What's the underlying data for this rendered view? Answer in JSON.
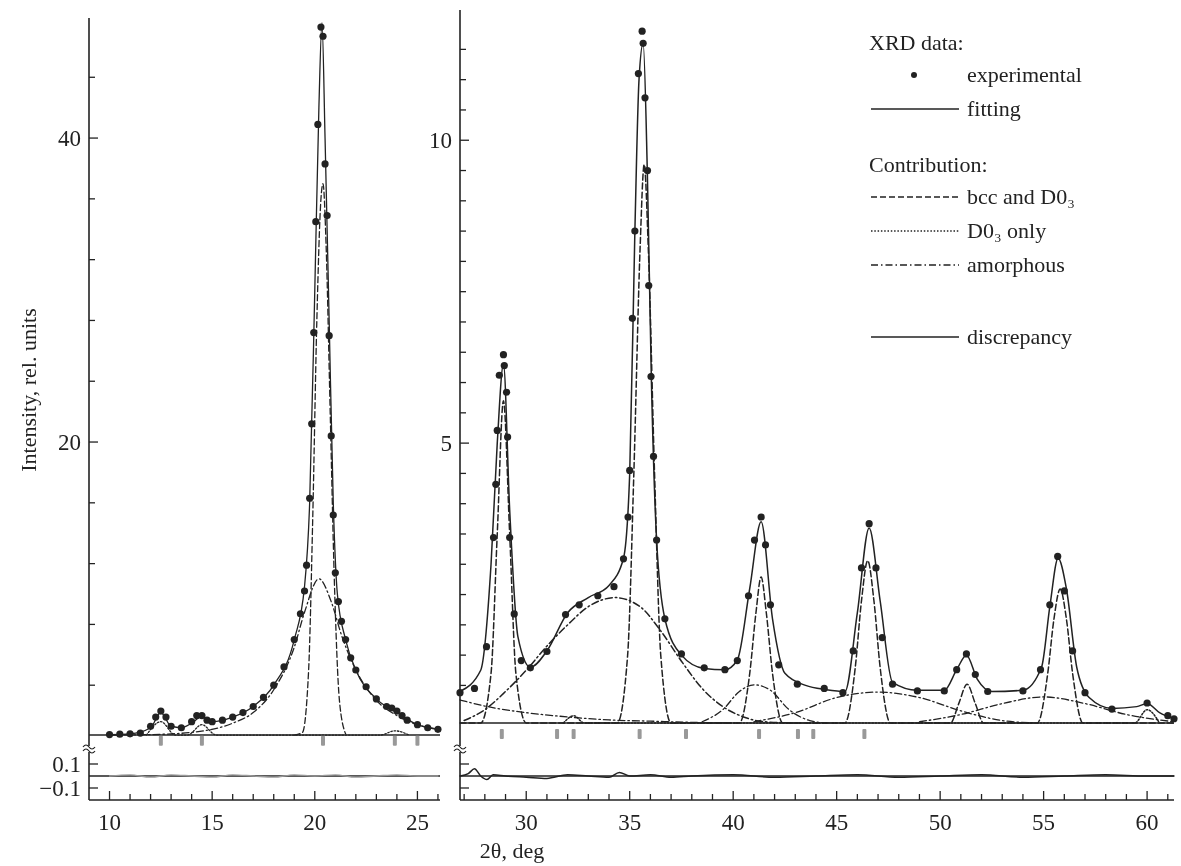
{
  "chart_data": [
    {
      "type": "line",
      "ylabel": "Intensity, rel. units",
      "xlim": [
        9.0,
        26.1
      ],
      "ylim": [
        0,
        47.9
      ],
      "tick_labels": "y",
      "yticks": [
        {
          "value": 4,
          "label": null
        },
        {
          "value": 8,
          "label": null
        },
        {
          "value": 12,
          "label": null
        },
        {
          "value": 16,
          "label": null
        },
        20,
        {
          "value": 24,
          "label": null
        },
        {
          "value": 28,
          "label": null
        },
        {
          "value": 32,
          "label": null
        },
        {
          "value": 36,
          "label": null
        },
        40,
        {
          "value": 44,
          "label": null
        }
      ],
      "ref_lines": [
        {
          "axis": "y",
          "value": 0.72,
          "color": "#222222"
        }
      ],
      "series": [
        {
          "type": "line",
          "color": "#222222",
          "line_style": "dashdot",
          "x": [
            10,
            12,
            14,
            16,
            17,
            18,
            19,
            19.5,
            20.2,
            20.8,
            21.3,
            22,
            23,
            24,
            25,
            26
          ],
          "values": [
            0.72,
            0.75,
            0.9,
            1.5,
            2.2,
            3.7,
            6.5,
            8.8,
            11.0,
            9.5,
            7.3,
            5.0,
            3.0,
            2.0,
            1.4,
            1.1
          ]
        },
        {
          "type": "line",
          "color": "#222222",
          "line_style": "dotted",
          "x": [
            11.8,
            12.5,
            13.2,
            13.8,
            14.5,
            15.2,
            23.2,
            23.9,
            24.6
          ],
          "values": [
            0.72,
            1.6,
            0.72,
            0.72,
            1.4,
            0.72,
            0.72,
            1.0,
            0.72
          ]
        },
        {
          "type": "line",
          "color": "#222222",
          "line_style": "dashed",
          "x": [
            19.0,
            19.4,
            19.7,
            19.9,
            20.1,
            20.3,
            20.4,
            20.55,
            20.75,
            20.95,
            21.2,
            21.5
          ],
          "values": [
            0.72,
            0.9,
            5,
            15,
            28,
            36,
            37,
            33,
            22,
            11,
            3,
            0.8
          ]
        },
        {
          "type": "line",
          "color": "#222222",
          "line_style": "solid",
          "x": [
            10,
            11,
            12,
            12.5,
            13,
            13.5,
            14,
            14.5,
            15,
            16,
            17,
            18,
            19,
            19.5,
            19.75,
            20,
            20.2,
            20.35,
            20.5,
            20.7,
            20.9,
            21.1,
            21.5,
            22,
            23,
            24,
            25,
            26
          ],
          "values": [
            0.75,
            0.8,
            1.2,
            2.2,
            1.3,
            1.2,
            1.5,
            1.95,
            1.6,
            1.9,
            2.6,
            4.0,
            7.0,
            10.5,
            16,
            30,
            42,
            47.6,
            40,
            28,
            16,
            10,
            7,
            5,
            3.1,
            2.2,
            1.4,
            1.1
          ]
        },
        {
          "type": "scatter",
          "color": "#222222",
          "marker": "circle",
          "x": [
            10.0,
            10.5,
            11.0,
            11.5,
            12.0,
            12.25,
            12.5,
            12.75,
            13.0,
            13.5,
            14.0,
            14.25,
            14.5,
            14.75,
            15.0,
            15.5,
            16.0,
            16.5,
            17.0,
            17.5,
            18.0,
            18.5,
            19.0,
            19.3,
            19.5,
            19.6,
            19.75,
            19.85,
            19.95,
            20.05,
            20.15,
            20.3,
            20.4,
            20.5,
            20.6,
            20.7,
            20.8,
            20.9,
            21.0,
            21.15,
            21.3,
            21.5,
            21.75,
            22.0,
            22.5,
            23.0,
            23.5,
            23.75,
            24.0,
            24.25,
            24.5,
            25.0,
            25.5,
            26.0
          ],
          "values": [
            0.75,
            0.78,
            0.8,
            0.85,
            1.3,
            1.9,
            2.3,
            1.9,
            1.3,
            1.2,
            1.6,
            2.0,
            2.0,
            1.7,
            1.6,
            1.7,
            1.9,
            2.2,
            2.6,
            3.2,
            4.0,
            5.2,
            7.0,
            8.7,
            10.2,
            11.9,
            16.3,
            21.2,
            27.2,
            34.5,
            40.9,
            47.3,
            46.7,
            38.3,
            34.9,
            27.0,
            20.4,
            15.2,
            11.4,
            9.5,
            8.2,
            7.0,
            5.8,
            5.0,
            3.9,
            3.1,
            2.6,
            2.5,
            2.3,
            2.0,
            1.7,
            1.4,
            1.2,
            1.1
          ]
        },
        {
          "type": "scatter",
          "color": "#999999",
          "marker": "square",
          "x": [
            12.5,
            14.5,
            20.4,
            23.9,
            25.0
          ],
          "values": [
            0.35,
            0.35,
            0.35,
            0.35,
            0.35
          ]
        }
      ]
    },
    {
      "type": "line",
      "xlim": [
        26.8,
        61.3
      ],
      "ylim": [
        0,
        12.15
      ],
      "tick_labels": "y",
      "legend": "top right",
      "annotations": [
        "XRD data:",
        "Contribution:"
      ],
      "yticks": [
        {
          "value": 1,
          "label": null
        },
        {
          "value": 1.5,
          "label": null
        },
        {
          "value": 2,
          "label": null
        },
        {
          "value": 2.5,
          "label": null
        },
        {
          "value": 3,
          "label": null
        },
        {
          "value": 3.5,
          "label": null
        },
        {
          "value": 4,
          "label": null
        },
        {
          "value": 4.5,
          "label": null
        },
        5,
        {
          "value": 5.5,
          "label": null
        },
        {
          "value": 6,
          "label": null
        },
        {
          "value": 6.5,
          "label": null
        },
        {
          "value": 7,
          "label": null
        },
        {
          "value": 7.5,
          "label": null
        },
        {
          "value": 8,
          "label": null
        },
        {
          "value": 8.5,
          "label": null
        },
        {
          "value": 9,
          "label": null
        },
        {
          "value": 9.5,
          "label": null
        },
        10,
        {
          "value": 10.5,
          "label": null
        },
        {
          "value": 11,
          "label": null
        },
        {
          "value": 11.5,
          "label": null
        }
      ],
      "ref_lines": [
        {
          "axis": "y",
          "value": 0.38,
          "color": "#222222"
        }
      ],
      "series": [
        {
          "name": "experimental",
          "type": "scatter",
          "color": "#222222",
          "marker": "circle",
          "x": [
            26.8,
            27.5,
            28.08,
            28.42,
            28.53,
            28.6,
            28.7,
            28.9,
            28.94,
            29.05,
            29.1,
            29.2,
            29.42,
            29.76,
            30.2,
            31.0,
            31.9,
            32.56,
            33.46,
            34.24,
            34.7,
            34.92,
            35.0,
            35.13,
            35.25,
            35.42,
            35.6,
            35.65,
            35.74,
            35.86,
            35.92,
            36.03,
            36.15,
            36.3,
            36.7,
            37.5,
            38.6,
            39.6,
            40.2,
            40.74,
            41.03,
            41.35,
            41.56,
            41.8,
            42.2,
            43.1,
            44.4,
            45.3,
            45.8,
            46.2,
            46.57,
            46.9,
            47.2,
            47.7,
            48.9,
            50.2,
            50.8,
            51.27,
            51.7,
            52.3,
            54.0,
            54.85,
            55.3,
            55.68,
            56.0,
            56.4,
            57.0,
            58.3,
            60.0,
            61.0,
            61.3
          ],
          "values": [
            0.88,
            0.95,
            1.64,
            3.44,
            4.32,
            5.21,
            6.12,
            6.46,
            6.28,
            5.84,
            5.1,
            3.44,
            2.18,
            1.41,
            1.29,
            1.56,
            2.17,
            2.33,
            2.48,
            2.63,
            3.09,
            3.78,
            4.55,
            7.06,
            8.5,
            11.1,
            11.8,
            11.6,
            10.7,
            9.5,
            7.6,
            6.1,
            4.78,
            3.4,
            2.1,
            1.52,
            1.29,
            1.26,
            1.41,
            2.48,
            3.4,
            3.78,
            3.32,
            2.33,
            1.34,
            1.02,
            0.95,
            0.88,
            1.57,
            2.94,
            3.67,
            2.94,
            1.79,
            1.02,
            0.91,
            0.91,
            1.26,
            1.52,
            1.18,
            0.9,
            0.91,
            1.26,
            2.33,
            3.13,
            2.56,
            1.57,
            0.88,
            0.61,
            0.71,
            0.5,
            0.45
          ]
        },
        {
          "name": "fitting",
          "type": "line",
          "color": "#222222",
          "line_style": "solid",
          "x": [
            26.8,
            27.8,
            28.3,
            28.6,
            28.9,
            29.2,
            29.6,
            30.2,
            31,
            32,
            33,
            34,
            34.7,
            35.0,
            35.25,
            35.45,
            35.65,
            35.85,
            36.05,
            36.3,
            36.7,
            37.5,
            38.6,
            39.6,
            40.2,
            40.8,
            41.35,
            41.9,
            42.5,
            43.5,
            44.5,
            45.4,
            46.0,
            46.57,
            47.1,
            47.7,
            48.9,
            50.2,
            50.8,
            51.27,
            51.8,
            52.5,
            54.0,
            54.9,
            55.3,
            55.7,
            56.1,
            56.6,
            57.2,
            58.3,
            59.5,
            60.0,
            60.6,
            61.3
          ],
          "values": [
            0.9,
            1.25,
            3.0,
            5.0,
            6.3,
            3.9,
            1.8,
            1.3,
            1.57,
            2.2,
            2.45,
            2.65,
            3.1,
            4.5,
            8.5,
            11.0,
            11.6,
            9.5,
            6.0,
            3.4,
            2.1,
            1.5,
            1.28,
            1.26,
            1.42,
            2.6,
            3.7,
            2.1,
            1.2,
            1.0,
            0.93,
            0.9,
            2.2,
            3.6,
            2.4,
            1.05,
            0.92,
            0.92,
            1.26,
            1.5,
            1.1,
            0.9,
            0.92,
            1.3,
            2.3,
            3.1,
            2.6,
            1.3,
            0.8,
            0.62,
            0.65,
            0.7,
            0.55,
            0.45
          ]
        },
        {
          "name": "bcc and D0₃",
          "type": "line",
          "color": "#222222",
          "line_style": "dashed",
          "x": [
            26.8,
            27.8,
            28.3,
            28.6,
            28.9,
            29.2,
            29.5,
            30.0,
            34.4,
            34.9,
            35.2,
            35.5,
            35.7,
            35.9,
            36.2,
            36.5,
            37.0,
            40.3,
            40.8,
            41.1,
            41.35,
            41.6,
            41.9,
            42.4,
            45.4,
            45.9,
            46.2,
            46.5,
            46.8,
            47.1,
            47.6,
            50.5,
            50.9,
            51.3,
            51.7,
            52.1,
            54.7,
            55.2,
            55.5,
            55.8,
            56.1,
            56.4,
            56.9,
            61.3
          ],
          "values": [
            0.38,
            0.38,
            1.2,
            3.5,
            5.7,
            3.5,
            1.2,
            0.38,
            0.38,
            1.5,
            4.5,
            8.2,
            9.6,
            8.2,
            4.5,
            1.5,
            0.38,
            0.38,
            1.2,
            2.2,
            2.79,
            2.2,
            1.2,
            0.38,
            0.38,
            1.3,
            2.4,
            3.06,
            2.4,
            1.3,
            0.38,
            0.38,
            0.7,
            1.02,
            0.7,
            0.38,
            0.38,
            1.2,
            2.1,
            2.59,
            2.1,
            1.2,
            0.38,
            0.38
          ]
        },
        {
          "name": "D0₃ only",
          "type": "line",
          "color": "#222222",
          "line_style": "dotted",
          "x": [
            31.8,
            32.3,
            32.8,
            59.4,
            60.0,
            60.6
          ],
          "values": [
            0.38,
            0.5,
            0.38,
            0.38,
            0.6,
            0.38
          ]
        },
        {
          "name": "amorphous",
          "type": "line",
          "color": "#222222",
          "line_style": "dashdot",
          "x": [
            27,
            28,
            29,
            30,
            31,
            32,
            33,
            34.3,
            35.5,
            36.5,
            37.5,
            38.5,
            39.5,
            40.5,
            41.5,
            43
          ],
          "values": [
            0.42,
            0.6,
            0.9,
            1.25,
            1.65,
            2.0,
            2.3,
            2.45,
            2.3,
            1.9,
            1.4,
            0.95,
            0.65,
            0.48,
            0.4,
            0.38
          ]
        },
        {
          "type": "line",
          "color": "#222222",
          "line_style": "dashdot",
          "x": [
            26.8,
            28,
            30,
            32,
            34,
            36,
            38,
            40
          ],
          "values": [
            0.76,
            0.66,
            0.55,
            0.48,
            0.43,
            0.41,
            0.39,
            0.38
          ]
        },
        {
          "type": "line",
          "color": "#222222",
          "line_style": "dashdot",
          "x": [
            38.5,
            39.5,
            40.3,
            41,
            41.8,
            42.7,
            43.7,
            44.5
          ],
          "values": [
            0.4,
            0.6,
            0.9,
            1.01,
            0.92,
            0.6,
            0.42,
            0.38
          ]
        },
        {
          "type": "line",
          "color": "#222222",
          "line_style": "dashdot",
          "x": [
            41,
            43,
            45,
            47,
            49,
            51,
            53,
            54.5
          ],
          "values": [
            0.4,
            0.55,
            0.8,
            0.89,
            0.8,
            0.58,
            0.42,
            0.38
          ]
        },
        {
          "type": "line",
          "color": "#222222",
          "line_style": "dashdot",
          "x": [
            49,
            51,
            53,
            55,
            57,
            59,
            61.3
          ],
          "values": [
            0.4,
            0.52,
            0.7,
            0.81,
            0.7,
            0.52,
            0.4
          ]
        },
        {
          "type": "scatter",
          "color": "#999999",
          "marker": "square",
          "x": [
            28.82,
            31.49,
            32.29,
            35.48,
            37.72,
            41.25,
            43.13,
            43.87,
            46.34
          ],
          "values": [
            0.2,
            0.2,
            0.2,
            0.2,
            0.2,
            0.2,
            0.2,
            0.2,
            0.2
          ]
        }
      ]
    },
    {
      "type": "line",
      "xlim": [
        9.0,
        26.1
      ],
      "ylim": [
        -0.2,
        0.2
      ],
      "xticks": [
        10,
        {
          "value": 11,
          "label": null
        },
        {
          "value": 12,
          "label": null
        },
        {
          "value": 13,
          "label": null
        },
        {
          "value": 14,
          "label": null
        },
        15,
        {
          "value": 16,
          "label": null
        },
        {
          "value": 17,
          "label": null
        },
        {
          "value": 18,
          "label": null
        },
        {
          "value": 19,
          "label": null
        },
        20,
        {
          "value": 21,
          "label": null
        },
        {
          "value": 22,
          "label": null
        },
        {
          "value": 23,
          "label": null
        },
        {
          "value": 24,
          "label": null
        },
        25,
        {
          "value": 26,
          "label": null
        }
      ],
      "yticks": [
        0.1,
        {
          "value": -0.1,
          "label": "−0.1"
        }
      ],
      "ref_lines": [
        {
          "axis": "y",
          "value": 0,
          "color": "#222222"
        }
      ],
      "series": [
        {
          "type": "line",
          "color": "#999999",
          "line_style": "solid",
          "x": [
            10,
            11,
            12,
            13,
            14,
            15,
            16,
            17,
            18,
            19,
            20,
            21,
            22,
            23,
            24,
            25,
            26
          ],
          "values": [
            0.0,
            0.01,
            -0.01,
            0.01,
            0,
            -0.01,
            0.01,
            0,
            -0.01,
            0.01,
            0,
            0.01,
            -0.01,
            0,
            0.01,
            0,
            0
          ]
        }
      ]
    },
    {
      "type": "line",
      "xlim": [
        26.8,
        61.3
      ],
      "ylim": [
        -0.2,
        0.2
      ],
      "tick_labels": "x",
      "xlabel": "2θ, deg",
      "xticks": [
        {
          "value": 27,
          "label": null
        },
        {
          "value": 28,
          "label": null
        },
        {
          "value": 29,
          "label": null
        },
        30,
        {
          "value": 31,
          "label": null
        },
        {
          "value": 32,
          "label": null
        },
        {
          "value": 33,
          "label": null
        },
        {
          "value": 34,
          "label": null
        },
        35,
        {
          "value": 36,
          "label": null
        },
        {
          "value": 37,
          "label": null
        },
        {
          "value": 38,
          "label": null
        },
        {
          "value": 39,
          "label": null
        },
        40,
        {
          "value": 41,
          "label": null
        },
        {
          "value": 42,
          "label": null
        },
        {
          "value": 43,
          "label": null
        },
        {
          "value": 44,
          "label": null
        },
        45,
        {
          "value": 46,
          "label": null
        },
        {
          "value": 47,
          "label": null
        },
        {
          "value": 48,
          "label": null
        },
        {
          "value": 49,
          "label": null
        },
        50,
        {
          "value": 51,
          "label": null
        },
        {
          "value": 52,
          "label": null
        },
        {
          "value": 53,
          "label": null
        },
        {
          "value": 54,
          "label": null
        },
        55,
        {
          "value": 56,
          "label": null
        },
        {
          "value": 57,
          "label": null
        },
        {
          "value": 58,
          "label": null
        },
        {
          "value": 59,
          "label": null
        },
        60,
        {
          "value": 61,
          "label": null
        }
      ],
      "yticks": [
        0.1,
        -0.1
      ],
      "ref_lines": [
        {
          "axis": "y",
          "value": 0,
          "color": "#222222"
        }
      ],
      "series": [
        {
          "name": "discrepancy",
          "type": "line",
          "color": "#222222",
          "line_style": "solid",
          "x": [
            26.8,
            27.2,
            27.5,
            27.8,
            28.1,
            28.4,
            29,
            30,
            31,
            32,
            33,
            34,
            34.5,
            35,
            36,
            37,
            38,
            40,
            42,
            44,
            46,
            48,
            50,
            52,
            54,
            56,
            58,
            60,
            61.3
          ],
          "values": [
            0.0,
            0.02,
            0.06,
            0.0,
            -0.03,
            0.01,
            0,
            -0.01,
            -0.02,
            0.01,
            0,
            -0.01,
            0.03,
            0,
            0.01,
            -0.01,
            0,
            0.01,
            -0.01,
            0,
            0.01,
            -0.01,
            0,
            0.01,
            -0.01,
            0,
            0.01,
            0,
            0
          ]
        }
      ]
    }
  ]
}
